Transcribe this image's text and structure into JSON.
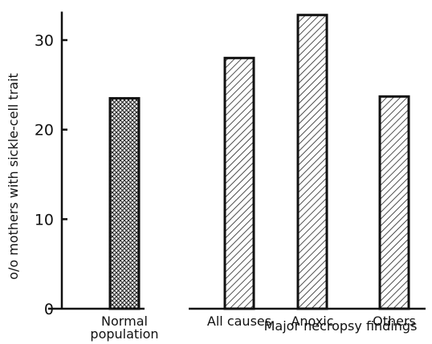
{
  "chart_data": {
    "type": "bar",
    "ylabel": "o/o mothers with sickle-cell trait",
    "xgroup_label": "Major necropsy findings",
    "ylim": [
      0,
      33
    ],
    "yticks": [
      0,
      10,
      20,
      30
    ],
    "grid": false,
    "categories": [
      {
        "lines": [
          "Normal",
          "population"
        ],
        "value": 23.5,
        "pattern": "crosshatch"
      },
      {
        "lines": [
          "All causes"
        ],
        "value": 28.0,
        "pattern": "diagonal"
      },
      {
        "lines": [
          "Anoxic"
        ],
        "value": 32.8,
        "pattern": "diagonal"
      },
      {
        "lines": [
          "Others"
        ],
        "value": 23.7,
        "pattern": "diagonal"
      }
    ]
  }
}
